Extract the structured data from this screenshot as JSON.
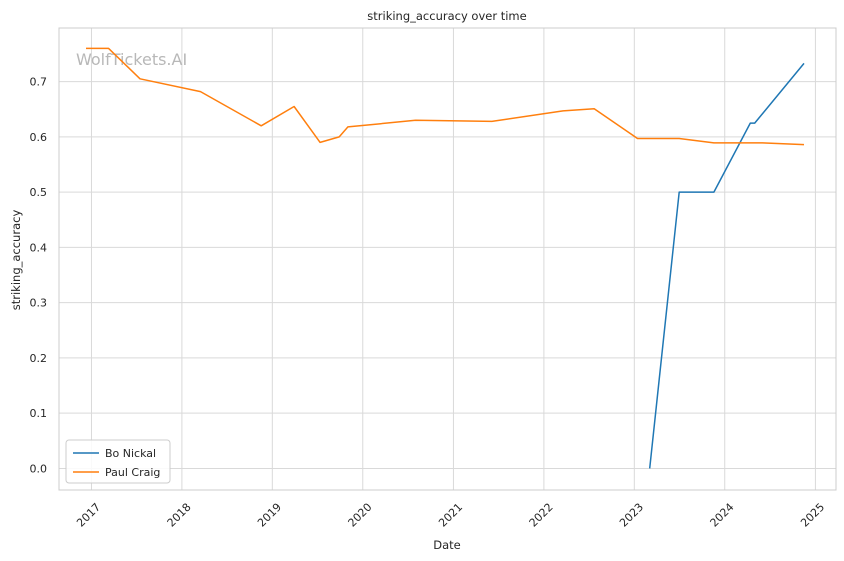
{
  "watermark": "WolfTickets.AI",
  "colors": {
    "background": "#ffffff",
    "grid": "#d9d9d9",
    "frame": "#cccccc",
    "bo_nickal": "#1f77b4",
    "paul_craig": "#ff7f0e"
  },
  "chart_data": {
    "type": "line",
    "title": "striking_accuracy over time",
    "xlabel": "Date",
    "ylabel": "striking_accuracy",
    "x_axis": {
      "kind": "date",
      "range": [
        "2016-08-23",
        "2025-03-25"
      ],
      "ticks": [
        "2017-01-01",
        "2018-01-01",
        "2019-01-01",
        "2020-01-01",
        "2021-01-01",
        "2022-01-01",
        "2023-01-01",
        "2024-01-01",
        "2025-01-01"
      ],
      "tick_labels": [
        "2017",
        "2018",
        "2019",
        "2020",
        "2021",
        "2022",
        "2023",
        "2024",
        "2025"
      ],
      "tick_rotation": 45
    },
    "y_axis": {
      "range": [
        -0.039,
        0.797
      ],
      "ticks": [
        0.0,
        0.1,
        0.2,
        0.3,
        0.4,
        0.5,
        0.6,
        0.7
      ],
      "tick_labels": [
        "0.0",
        "0.1",
        "0.2",
        "0.3",
        "0.4",
        "0.5",
        "0.6",
        "0.7"
      ]
    },
    "grid": true,
    "legend": {
      "position": "bottom-left"
    },
    "series": [
      {
        "name": "Bo Nickal",
        "color_key": "bo_nickal",
        "points": [
          {
            "x": "2023-03-04",
            "y": 0.0
          },
          {
            "x": "2023-07-01",
            "y": 0.5
          },
          {
            "x": "2023-11-18",
            "y": 0.5
          },
          {
            "x": "2024-04-13",
            "y": 0.625
          },
          {
            "x": "2024-05-01",
            "y": 0.625
          },
          {
            "x": "2024-11-16",
            "y": 0.733
          }
        ]
      },
      {
        "name": "Paul Craig",
        "color_key": "paul_craig",
        "points": [
          {
            "x": "2016-12-10",
            "y": 0.76
          },
          {
            "x": "2017-03-11",
            "y": 0.76
          },
          {
            "x": "2017-07-16",
            "y": 0.705
          },
          {
            "x": "2018-03-17",
            "y": 0.682
          },
          {
            "x": "2018-11-17",
            "y": 0.62
          },
          {
            "x": "2019-03-30",
            "y": 0.655
          },
          {
            "x": "2019-07-13",
            "y": 0.59
          },
          {
            "x": "2019-09-28",
            "y": 0.6
          },
          {
            "x": "2019-11-02",
            "y": 0.618
          },
          {
            "x": "2020-08-01",
            "y": 0.63
          },
          {
            "x": "2021-06-05",
            "y": 0.628
          },
          {
            "x": "2022-03-19",
            "y": 0.647
          },
          {
            "x": "2022-07-23",
            "y": 0.651
          },
          {
            "x": "2023-01-14",
            "y": 0.597
          },
          {
            "x": "2023-07-01",
            "y": 0.597
          },
          {
            "x": "2023-11-18",
            "y": 0.589
          },
          {
            "x": "2024-03-30",
            "y": 0.589
          },
          {
            "x": "2024-06-01",
            "y": 0.589
          },
          {
            "x": "2024-11-16",
            "y": 0.586
          }
        ]
      }
    ]
  }
}
